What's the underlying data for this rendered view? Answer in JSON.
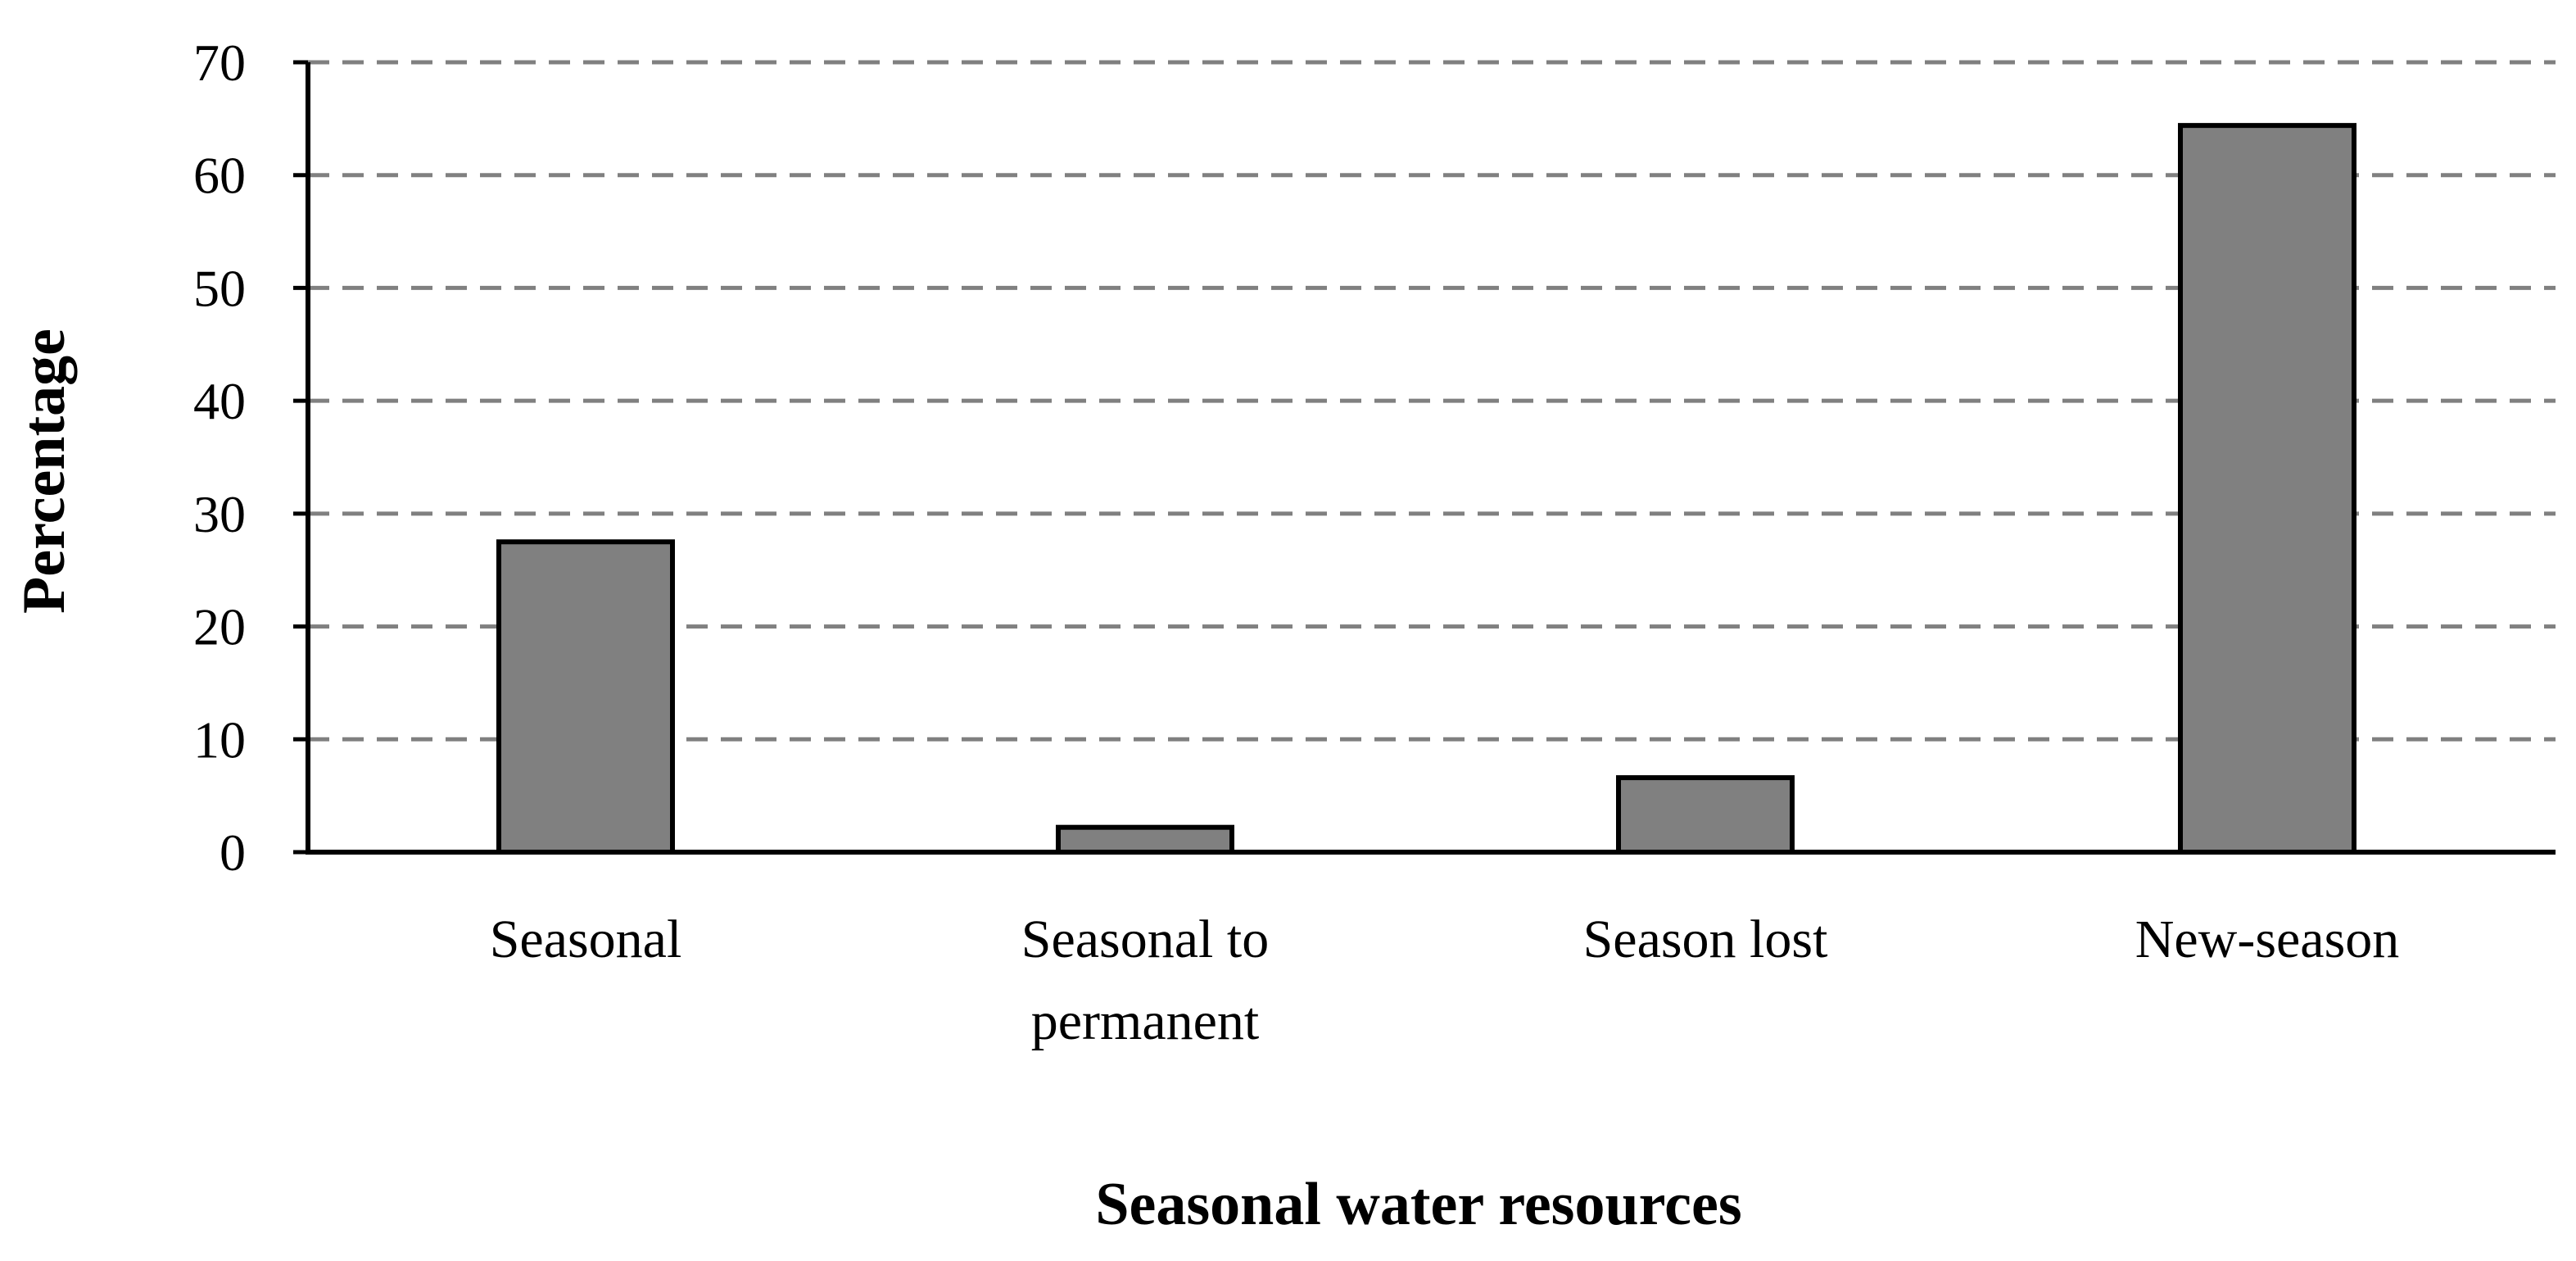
{
  "chart_data": {
    "type": "bar",
    "title": "",
    "xlabel": "Seasonal water resources",
    "ylabel": "Percentage",
    "categories": [
      [
        "Seasonal"
      ],
      [
        "Seasonal to",
        "permanent"
      ],
      [
        "Season lost"
      ],
      [
        "New-season"
      ]
    ],
    "values": [
      27.5,
      2.2,
      6.6,
      64.4
    ],
    "ylim": [
      0,
      70
    ],
    "yticks": [
      0,
      10,
      20,
      30,
      40,
      50,
      60,
      70
    ],
    "ytick_labels": [
      "0",
      "10",
      "20",
      "30",
      "40",
      "50",
      "60",
      "70"
    ],
    "grid": "dashed horizontal",
    "legend": "none"
  },
  "colors": {
    "bar_fill": "#808080",
    "bar_stroke": "#000000",
    "grid": "#808080",
    "axis": "#000000"
  }
}
